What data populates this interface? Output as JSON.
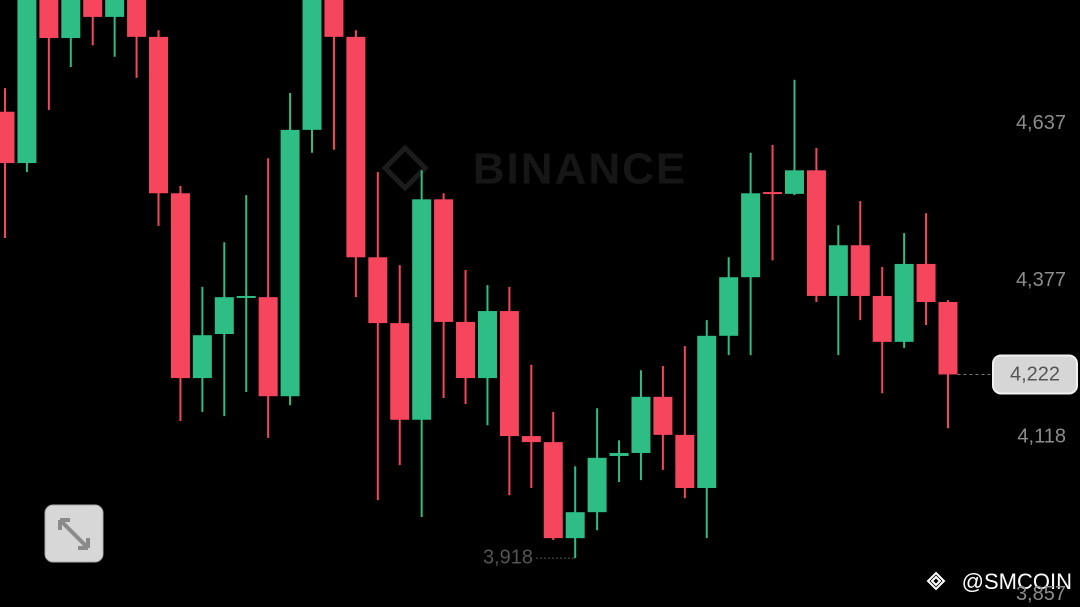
{
  "chart_data": {
    "type": "candlestick",
    "watermark": "BINANCE",
    "credit": "@SMCOIN",
    "up_color": "#2ebd85",
    "down_color": "#f6465d",
    "open": [
      4657,
      4572,
      4850,
      4779,
      4850,
      4814,
      4850,
      4781,
      4522,
      4216,
      4289,
      4350,
      4350,
      4186,
      4627,
      4850,
      4781,
      4416,
      4307,
      4147,
      4512,
      4309,
      4216,
      4327,
      4120,
      4110,
      3951,
      3994,
      4087,
      4092,
      4185,
      4122,
      4034,
      4286,
      4383,
      4524,
      4521,
      4560,
      4352,
      4436,
      4352,
      4276,
      4405,
      4342
    ],
    "high": [
      4696,
      4870,
      4870,
      4870,
      4870,
      4870,
      4870,
      4792,
      4534,
      4367,
      4441,
      4519,
      4580,
      4688,
      4870,
      4870,
      4792,
      4557,
      4403,
      4560,
      4522,
      4395,
      4370,
      4367,
      4238,
      4160,
      4070,
      4166,
      4113,
      4229,
      4236,
      4269,
      4312,
      4416,
      4589,
      4602,
      4710,
      4597,
      4469,
      4509,
      4400,
      4456,
      4489,
      4345
    ],
    "low": [
      4448,
      4557,
      4660,
      4731,
      4767,
      4748,
      4713,
      4468,
      4145,
      4160,
      4153,
      4193,
      4117,
      4171,
      4589,
      4594,
      4350,
      4014,
      4072,
      3986,
      4183,
      4173,
      4138,
      4022,
      4034,
      3948,
      3918,
      3964,
      4044,
      4047,
      4064,
      4017,
      3951,
      4254,
      4254,
      4411,
      4519,
      4342,
      4254,
      4312,
      4191,
      4266,
      4304,
      4133
    ],
    "close": [
      4572,
      4850,
      4779,
      4850,
      4814,
      4850,
      4781,
      4522,
      4216,
      4287,
      4350,
      4352,
      4186,
      4627,
      4850,
      4781,
      4416,
      4307,
      4147,
      4512,
      4309,
      4216,
      4327,
      4120,
      4110,
      3951,
      3994,
      4084,
      4092,
      4185,
      4122,
      4034,
      4286,
      4383,
      4522,
      4521,
      4560,
      4352,
      4436,
      4352,
      4276,
      4405,
      4342,
      4222
    ],
    "ylim": [
      3837,
      4842
    ],
    "yticks": [
      {
        "value": 4637,
        "label": "4,637"
      },
      {
        "value": 4377,
        "label": "4,377"
      },
      {
        "value": 4118,
        "label": "4,118"
      },
      {
        "value": 3857,
        "label": "3,857"
      }
    ],
    "price_label": {
      "value": 4222,
      "label": "4,222"
    },
    "low_label": {
      "value": 3918,
      "label": "3,918"
    }
  }
}
